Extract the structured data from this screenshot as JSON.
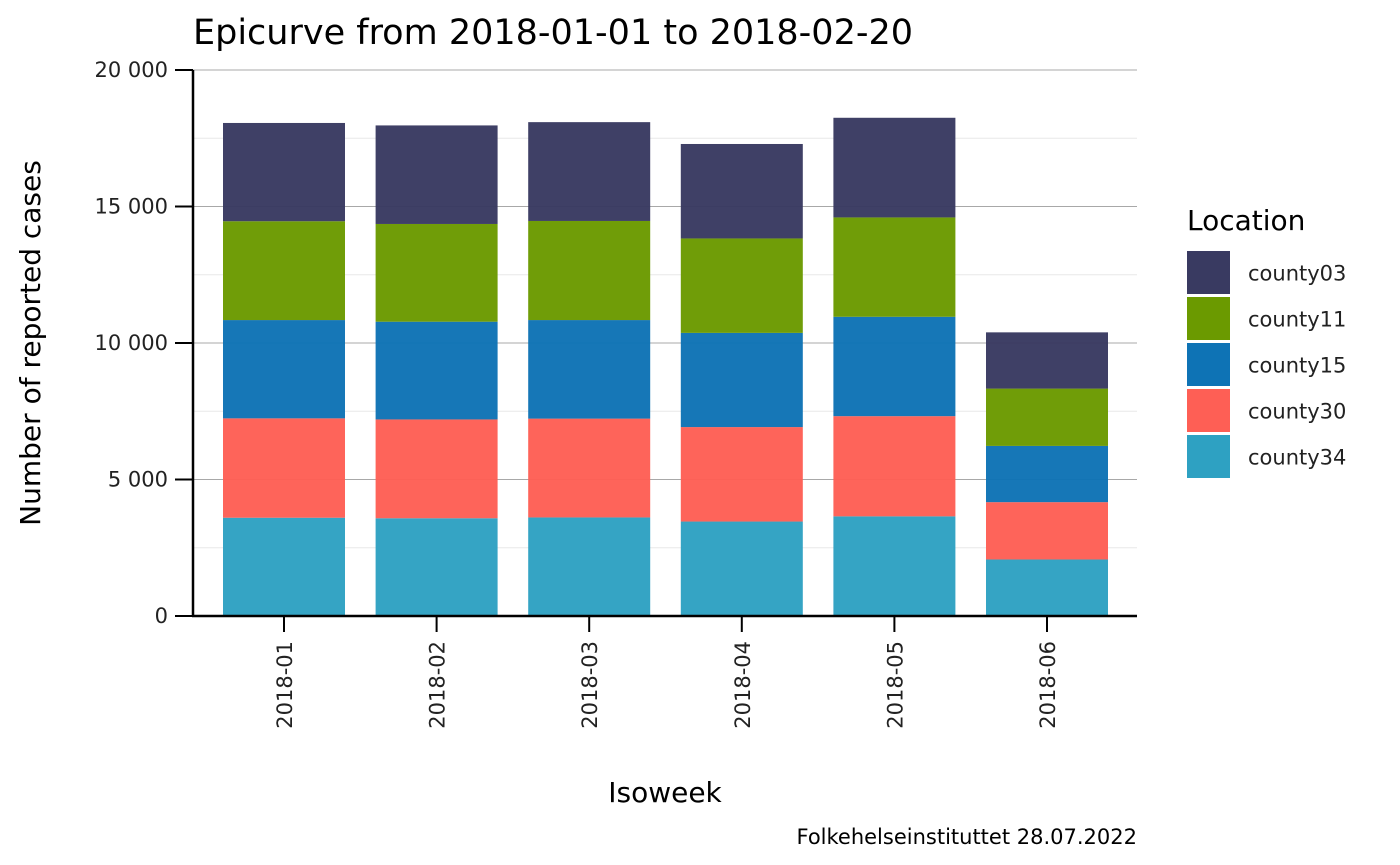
{
  "chart_data": {
    "type": "bar",
    "stacked": true,
    "title": "Epicurve from 2018-01-01 to 2018-02-20",
    "xlabel": "Isoweek",
    "ylabel": "Number of reported cases",
    "caption": "Folkehelseinstituttet 28.07.2022",
    "categories": [
      "2018-01",
      "2018-02",
      "2018-03",
      "2018-04",
      "2018-05",
      "2018-06"
    ],
    "ylim": [
      0,
      20000
    ],
    "yticks": [
      0,
      5000,
      10000,
      15000,
      20000
    ],
    "ytick_labels": [
      "0",
      "5 000",
      "10 000",
      "15 000",
      "20 000"
    ],
    "grid": true,
    "legend": {
      "title": "Location",
      "position": "right"
    },
    "series": [
      {
        "name": "county34",
        "color": "#2ea1c2",
        "values": [
          3600,
          3580,
          3610,
          3460,
          3650,
          2070
        ]
      },
      {
        "name": "county30",
        "color": "#fe5f55",
        "values": [
          3640,
          3620,
          3620,
          3460,
          3670,
          2100
        ]
      },
      {
        "name": "county15",
        "color": "#0e73b5",
        "values": [
          3600,
          3580,
          3610,
          3450,
          3640,
          2060
        ]
      },
      {
        "name": "county11",
        "color": "#6b9a00",
        "values": [
          3620,
          3580,
          3630,
          3460,
          3640,
          2100
        ]
      },
      {
        "name": "county03",
        "color": "#393a61",
        "values": [
          3600,
          3610,
          3620,
          3460,
          3650,
          2060
        ]
      }
    ],
    "legend_order": [
      "county03",
      "county11",
      "county15",
      "county30",
      "county34"
    ]
  }
}
